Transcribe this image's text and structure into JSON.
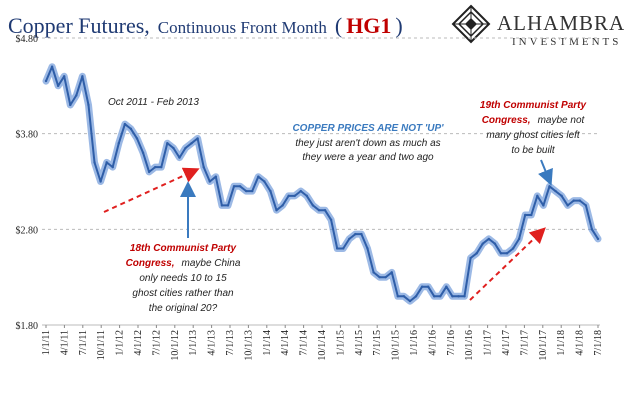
{
  "title": {
    "main": "Copper Futures,",
    "sub": "Continuous  Front Month",
    "open_paren": "(",
    "ticker": "HG1",
    "close_paren": ")"
  },
  "logo": {
    "name": "ALHAMBRA",
    "tagline": "INVESTMENTS",
    "icon": "alhambra-diamond-logo-icon"
  },
  "colors": {
    "title": "#1f3a73",
    "line": "#2f5ea8",
    "line_fill": "#4a7fd0",
    "red": "#c00000",
    "blue": "#3a7abf",
    "grid": "#bbbbbb",
    "arrow_red": "#e0201f",
    "arrow_blue": "#3a7abf"
  },
  "chart_data": {
    "type": "line",
    "title": "Copper Futures, Continuous  Front Month (HG1)",
    "ylim": [
      1.8,
      4.8
    ],
    "yticks": [
      "$1.80",
      "$2.80",
      "$3.80",
      "$4.80"
    ],
    "ytick_values": [
      1.8,
      2.8,
      3.8,
      4.8
    ],
    "grid": "horizontal dashed",
    "xticks": [
      "1/1/11",
      "4/1/11",
      "7/1/11",
      "10/1/11",
      "1/1/12",
      "4/1/12",
      "7/1/12",
      "10/1/12",
      "1/1/13",
      "4/1/13",
      "7/1/13",
      "10/1/13",
      "1/1/14",
      "4/1/14",
      "7/1/14",
      "10/1/14",
      "1/1/15",
      "4/1/15",
      "7/1/15",
      "10/1/15",
      "1/1/16",
      "4/1/16",
      "7/1/16",
      "10/1/16",
      "1/1/17",
      "4/1/17",
      "7/1/17",
      "10/1/17",
      "1/1/18",
      "4/1/18",
      "7/1/18"
    ],
    "series": [
      {
        "x": [
          "2011-01",
          "2011-02",
          "2011-03",
          "2011-04",
          "2011-05",
          "2011-06",
          "2011-07",
          "2011-08",
          "2011-09",
          "2011-10",
          "2011-11",
          "2011-12",
          "2012-01",
          "2012-02",
          "2012-03",
          "2012-04",
          "2012-05",
          "2012-06",
          "2012-07",
          "2012-08",
          "2012-09",
          "2012-10",
          "2012-11",
          "2012-12",
          "2013-01",
          "2013-02",
          "2013-03",
          "2013-04",
          "2013-05",
          "2013-06",
          "2013-07",
          "2013-08",
          "2013-09",
          "2013-10",
          "2013-11",
          "2013-12",
          "2014-01",
          "2014-02",
          "2014-03",
          "2014-04",
          "2014-05",
          "2014-06",
          "2014-07",
          "2014-08",
          "2014-09",
          "2014-10",
          "2014-11",
          "2014-12",
          "2015-01",
          "2015-02",
          "2015-03",
          "2015-04",
          "2015-05",
          "2015-06",
          "2015-07",
          "2015-08",
          "2015-09",
          "2015-10",
          "2015-11",
          "2015-12",
          "2016-01",
          "2016-02",
          "2016-03",
          "2016-04",
          "2016-05",
          "2016-06",
          "2016-07",
          "2016-08",
          "2016-09",
          "2016-10",
          "2016-11",
          "2016-12",
          "2017-01",
          "2017-02",
          "2017-03",
          "2017-04",
          "2017-05",
          "2017-06",
          "2017-07",
          "2017-08",
          "2017-09",
          "2017-10",
          "2017-11",
          "2017-12",
          "2018-01",
          "2018-02",
          "2018-03",
          "2018-04",
          "2018-05",
          "2018-06",
          "2018-07",
          "2018-08"
        ],
        "values": [
          4.35,
          4.5,
          4.3,
          4.4,
          4.1,
          4.2,
          4.4,
          4.1,
          3.5,
          3.3,
          3.5,
          3.45,
          3.7,
          3.9,
          3.85,
          3.75,
          3.6,
          3.4,
          3.45,
          3.45,
          3.7,
          3.65,
          3.55,
          3.65,
          3.7,
          3.75,
          3.45,
          3.3,
          3.35,
          3.05,
          3.05,
          3.25,
          3.25,
          3.2,
          3.2,
          3.35,
          3.3,
          3.2,
          3.0,
          3.05,
          3.15,
          3.15,
          3.2,
          3.15,
          3.05,
          3.0,
          3.0,
          2.9,
          2.6,
          2.6,
          2.7,
          2.75,
          2.75,
          2.6,
          2.35,
          2.3,
          2.3,
          2.35,
          2.1,
          2.1,
          2.05,
          2.1,
          2.2,
          2.2,
          2.1,
          2.1,
          2.2,
          2.1,
          2.1,
          2.1,
          2.5,
          2.55,
          2.65,
          2.7,
          2.65,
          2.55,
          2.55,
          2.6,
          2.7,
          2.95,
          2.95,
          3.15,
          3.05,
          3.25,
          3.2,
          3.15,
          3.05,
          3.1,
          3.1,
          3.05,
          2.8,
          2.7
        ]
      }
    ],
    "annotations": {
      "period": "Oct 2011 - Feb 2013",
      "blue_heading": "COPPER PRICES ARE NOT 'UP'",
      "blue_line1": "they just aren't down as much as",
      "blue_line2": "they were a year and two ago",
      "left_red1": "18th Communist Party",
      "left_red2": "Congress,",
      "left_rest2": "maybe China",
      "left_line3": "only needs 10 to 15",
      "left_line4": "ghost cities rather than",
      "left_line5": "the original 20?",
      "right_red1": "19th Communist Party",
      "right_red2": "Congress,",
      "right_rest2": "maybe not",
      "right_line3": "many ghost cities left",
      "right_line4": "to be built"
    }
  }
}
